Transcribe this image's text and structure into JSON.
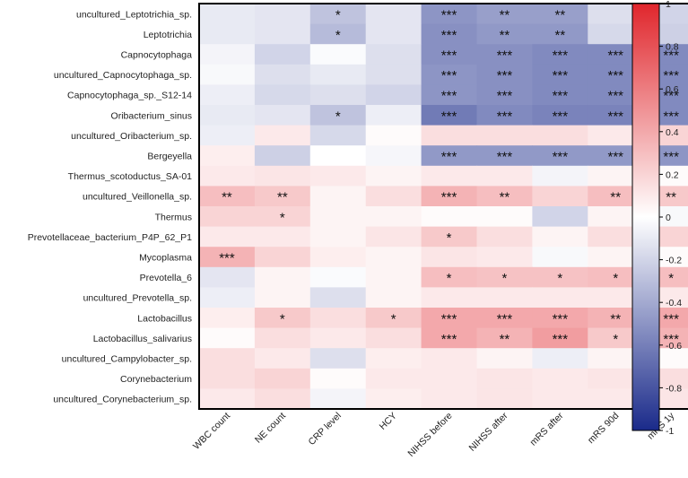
{
  "chart_data": {
    "type": "heatmap",
    "title": "",
    "rows": [
      "uncultured_Leptotrichia_sp.",
      "Leptotrichia",
      "Capnocytophaga",
      "uncultured_Capnocytophaga_sp.",
      "Capnocytophaga_sp._S12-14",
      "Oribacterium_sinus",
      "uncultured_Oribacterium_sp.",
      "Bergeyella",
      "Thermus_scotoductus_SA-01",
      "uncultured_Veillonella_sp.",
      "Thermus",
      "Prevotellaceae_bacterium_P4P_62_P1",
      "Mycoplasma",
      "Prevotella_6",
      "uncultured_Prevotella_sp.",
      "Lactobacillus",
      "Lactobacillus_salivarius",
      "uncultured_Campylobacter_sp.",
      "Corynebacterium",
      "uncultured_Corynebacterium_sp."
    ],
    "columns": [
      "WBC count",
      "NE count",
      "CRP level",
      "HCY",
      "NIHSS before",
      "NIHSS after",
      "mRS after",
      "mRS 90d",
      "mRS 1y"
    ],
    "values": [
      [
        -0.1,
        -0.12,
        -0.28,
        -0.12,
        -0.5,
        -0.45,
        -0.45,
        -0.15,
        -0.2
      ],
      [
        -0.1,
        -0.12,
        -0.32,
        -0.12,
        -0.52,
        -0.48,
        -0.48,
        -0.18,
        -0.22
      ],
      [
        -0.05,
        -0.2,
        -0.02,
        -0.15,
        -0.52,
        -0.52,
        -0.55,
        -0.55,
        -0.55
      ],
      [
        -0.03,
        -0.15,
        -0.1,
        -0.15,
        -0.5,
        -0.52,
        -0.55,
        -0.55,
        -0.55
      ],
      [
        -0.08,
        -0.18,
        -0.15,
        -0.2,
        -0.5,
        -0.52,
        -0.55,
        -0.55,
        -0.55
      ],
      [
        -0.1,
        -0.12,
        -0.28,
        -0.08,
        -0.62,
        -0.55,
        -0.58,
        -0.58,
        -0.55
      ],
      [
        -0.08,
        0.1,
        -0.18,
        0.02,
        0.15,
        0.15,
        0.15,
        0.1,
        0.2
      ],
      [
        0.08,
        -0.22,
        0.0,
        -0.04,
        -0.48,
        -0.48,
        -0.48,
        -0.48,
        -0.5
      ],
      [
        0.1,
        0.12,
        0.1,
        0.05,
        0.1,
        0.1,
        -0.05,
        0.05,
        0.02
      ],
      [
        0.3,
        0.25,
        0.05,
        0.15,
        0.35,
        0.3,
        0.2,
        0.3,
        0.25
      ],
      [
        0.2,
        0.2,
        0.05,
        0.05,
        0.02,
        0.02,
        -0.2,
        0.05,
        -0.03
      ],
      [
        0.1,
        0.1,
        0.05,
        0.12,
        0.25,
        0.15,
        0.05,
        0.15,
        0.2
      ],
      [
        0.35,
        0.2,
        0.08,
        0.05,
        0.12,
        0.1,
        -0.03,
        0.05,
        0.02
      ],
      [
        -0.12,
        0.05,
        -0.02,
        0.05,
        0.3,
        0.28,
        0.28,
        0.3,
        0.3
      ],
      [
        -0.08,
        0.05,
        -0.15,
        0.05,
        0.1,
        0.1,
        0.1,
        0.1,
        0.1
      ],
      [
        0.08,
        0.25,
        0.15,
        0.25,
        0.4,
        0.4,
        0.4,
        0.35,
        0.4
      ],
      [
        0.02,
        0.15,
        0.1,
        0.15,
        0.4,
        0.35,
        0.45,
        0.25,
        0.35
      ],
      [
        0.15,
        0.1,
        -0.15,
        0.08,
        0.1,
        0.05,
        -0.08,
        0.05,
        0.02
      ],
      [
        0.15,
        0.2,
        0.02,
        0.1,
        0.1,
        0.12,
        0.1,
        0.12,
        0.15
      ],
      [
        0.1,
        0.15,
        -0.05,
        0.08,
        0.1,
        0.12,
        0.1,
        0.1,
        0.12
      ]
    ],
    "significance": [
      [
        "",
        "",
        "*",
        "",
        "***",
        "**",
        "**",
        "",
        ""
      ],
      [
        "",
        "",
        "*",
        "",
        "***",
        "**",
        "**",
        "",
        ""
      ],
      [
        "",
        "",
        "",
        "",
        "***",
        "***",
        "***",
        "***",
        "***"
      ],
      [
        "",
        "",
        "",
        "",
        "***",
        "***",
        "***",
        "***",
        "***"
      ],
      [
        "",
        "",
        "",
        "",
        "***",
        "***",
        "***",
        "***",
        "***"
      ],
      [
        "",
        "",
        "*",
        "",
        "***",
        "***",
        "***",
        "***",
        "***"
      ],
      [
        "",
        "",
        "",
        "",
        "",
        "",
        "",
        "",
        ""
      ],
      [
        "",
        "",
        "",
        "",
        "***",
        "***",
        "***",
        "***",
        "***"
      ],
      [
        "",
        "",
        "",
        "",
        "",
        "",
        "",
        "",
        ""
      ],
      [
        "**",
        "**",
        "",
        "",
        "***",
        "**",
        "",
        "**",
        "**"
      ],
      [
        "",
        "*",
        "",
        "",
        "",
        "",
        "",
        "",
        ""
      ],
      [
        "",
        "",
        "",
        "",
        "*",
        "",
        "",
        "",
        ""
      ],
      [
        "***",
        "",
        "",
        "",
        "",
        "",
        "",
        "",
        ""
      ],
      [
        "",
        "",
        "",
        "",
        "*",
        "*",
        "*",
        "*",
        "*"
      ],
      [
        "",
        "",
        "",
        "",
        "",
        "",
        "",
        "",
        ""
      ],
      [
        "",
        "*",
        "",
        "*",
        "***",
        "***",
        "***",
        "**",
        "***"
      ],
      [
        "",
        "",
        "",
        "",
        "***",
        "**",
        "***",
        "*",
        "***"
      ],
      [
        "",
        "",
        "",
        "",
        "",
        "",
        "",
        "",
        ""
      ],
      [
        "",
        "",
        "",
        "",
        "",
        "",
        "",
        "",
        ""
      ],
      [
        "",
        "",
        "",
        "",
        "",
        "",
        "",
        "",
        ""
      ]
    ],
    "colorbar": {
      "range": [
        -1,
        1
      ],
      "ticks": [
        "1",
        "0.8",
        "0.6",
        "0.4",
        "0.2",
        "0",
        "-0.2",
        "-0.4",
        "-0.6",
        "-0.8",
        "-1"
      ],
      "colors": {
        "negative": "#1a2a8a",
        "zero": "#ffffff",
        "positive": "#e0262c"
      }
    }
  }
}
